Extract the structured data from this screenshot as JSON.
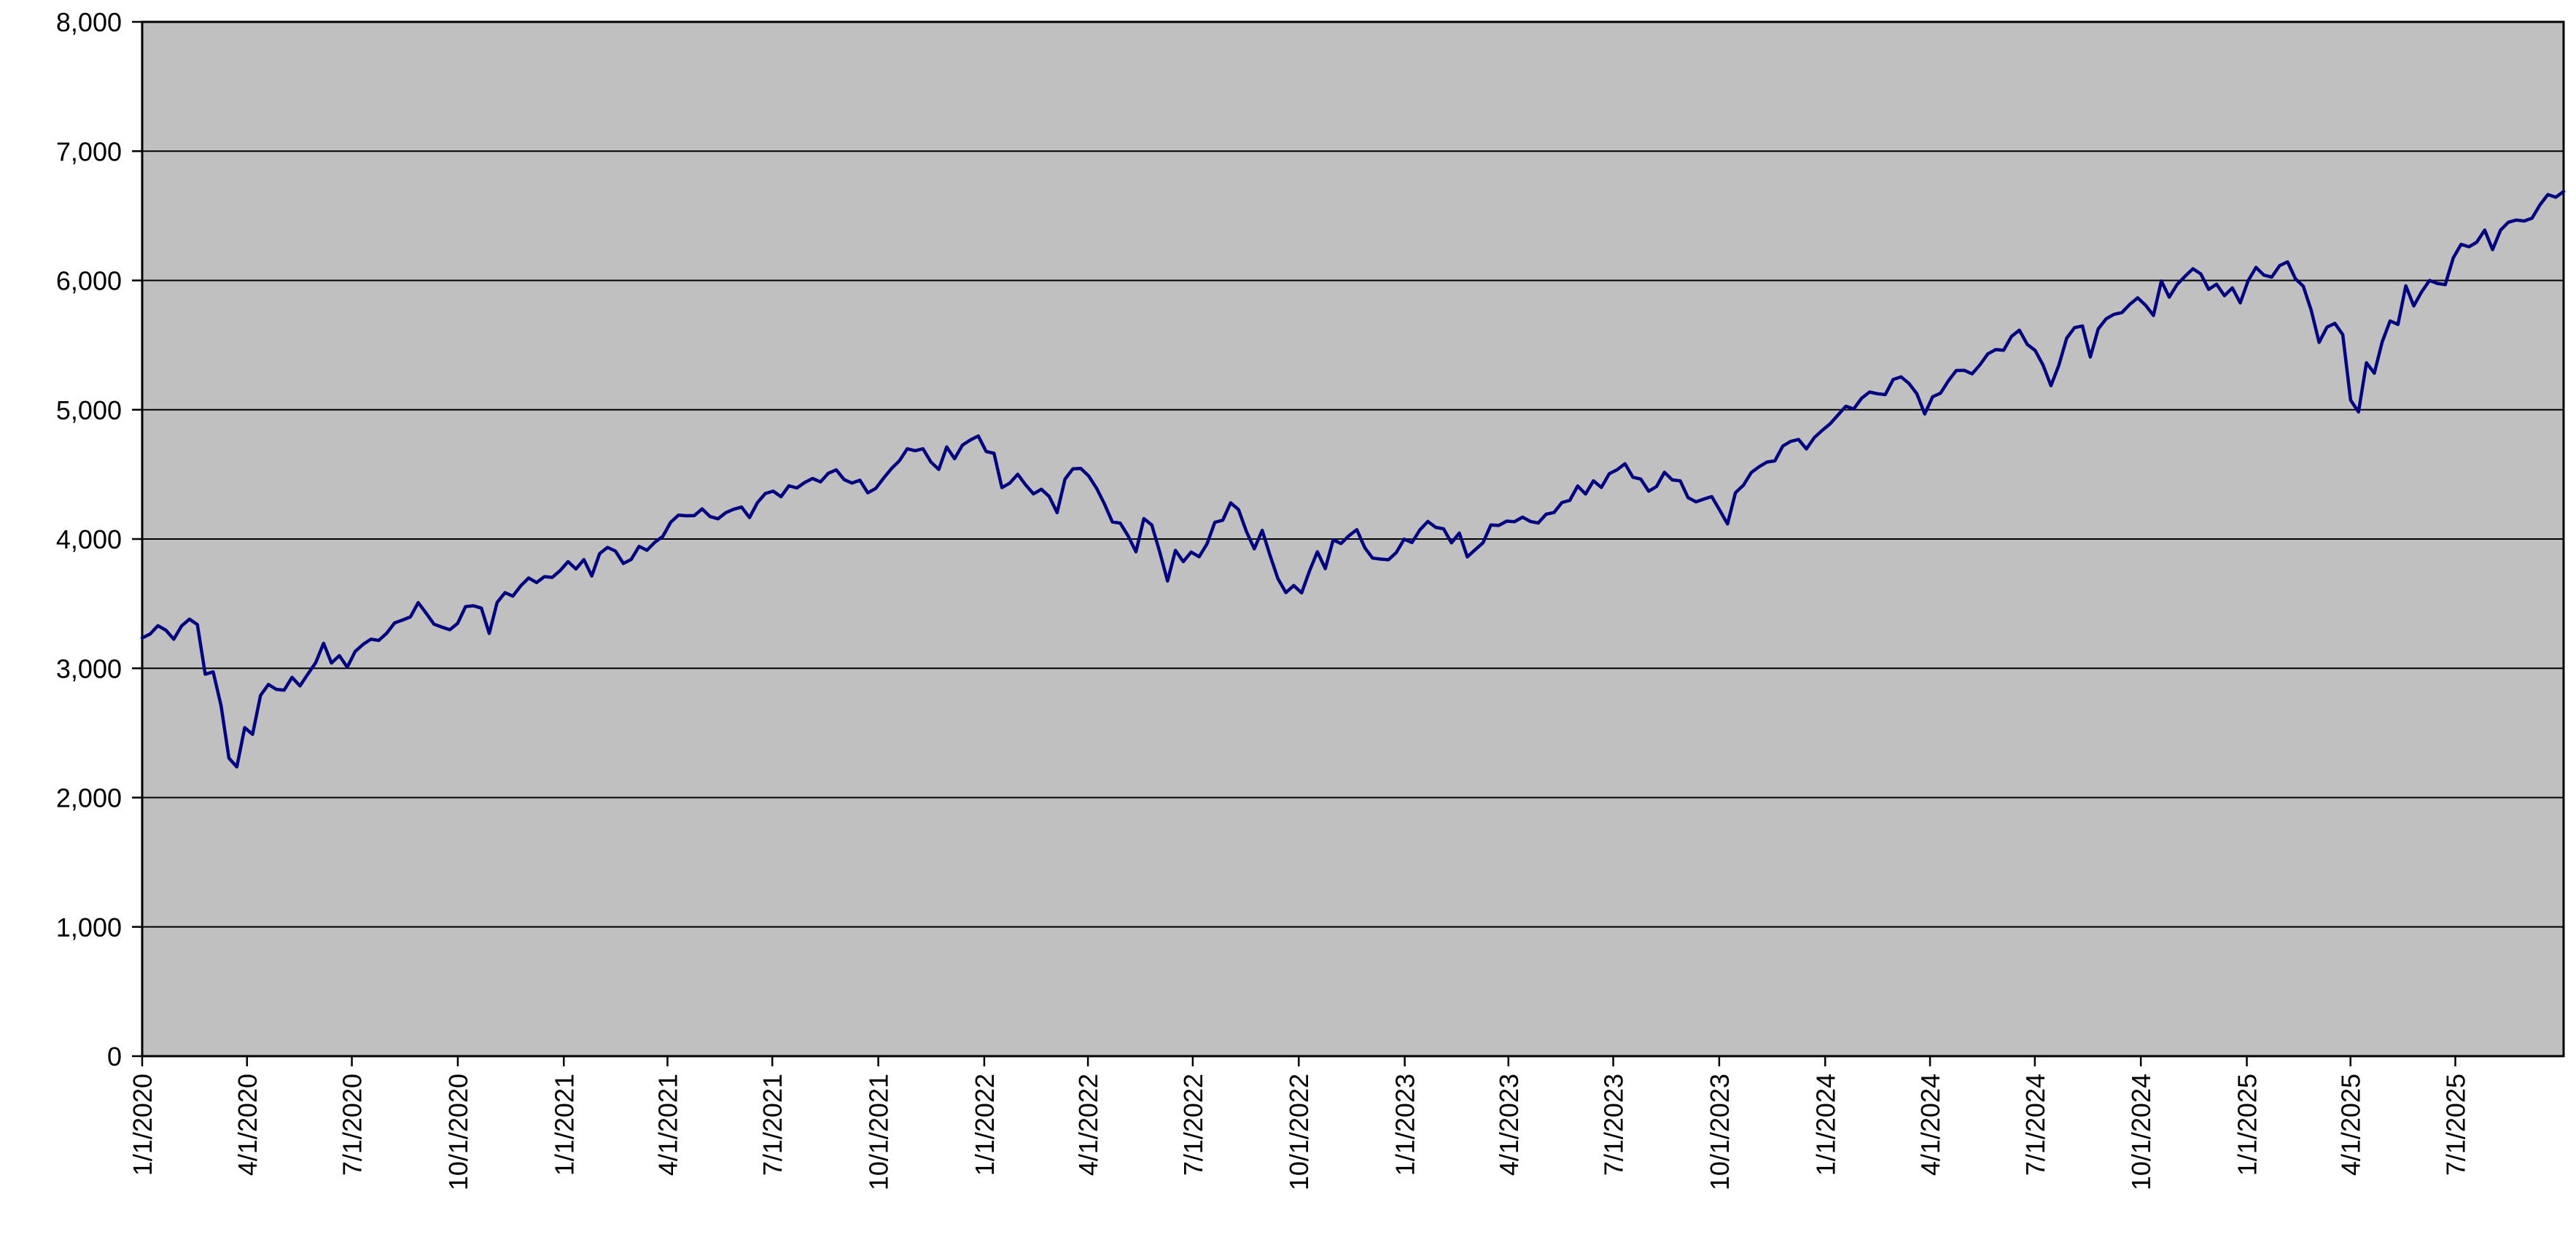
{
  "chart_data": {
    "type": "line",
    "title": "",
    "legend": "none",
    "grid": "horizontal",
    "plot_background": "#c0c0c0",
    "line_color": "#000080",
    "axis_color": "#000000",
    "y_min": 0,
    "y_max": 8000,
    "y_tick_step": 1000,
    "y_tick_labels": [
      "0",
      "1,000",
      "2,000",
      "3,000",
      "4,000",
      "5,000",
      "6,000",
      "7,000",
      "8,000"
    ],
    "x_start": "1/1/2020",
    "x_end": "10/3/2025",
    "x_tick_labels": [
      "1/1/2020",
      "4/1/2020",
      "7/1/2020",
      "10/1/2020",
      "1/1/2021",
      "4/1/2021",
      "7/1/2021",
      "10/1/2021",
      "1/1/2022",
      "4/1/2022",
      "7/1/2022",
      "10/1/2022",
      "1/1/2023",
      "4/1/2023",
      "7/1/2023",
      "10/1/2023",
      "1/1/2024",
      "4/1/2024",
      "7/1/2024",
      "10/1/2024",
      "1/1/2025",
      "4/1/2025",
      "7/1/2025"
    ],
    "values": [
      3235,
      3265,
      3330,
      3295,
      3225,
      3328,
      3380,
      3338,
      2954,
      2972,
      2711,
      2305,
      2237,
      2541,
      2489,
      2790,
      2875,
      2837,
      2831,
      2930,
      2864,
      2955,
      3044,
      3194,
      3041,
      3098,
      3009,
      3130,
      3185,
      3225,
      3216,
      3271,
      3351,
      3373,
      3397,
      3508,
      3427,
      3341,
      3319,
      3298,
      3348,
      3477,
      3484,
      3465,
      3270,
      3509,
      3585,
      3558,
      3638,
      3699,
      3663,
      3709,
      3703,
      3756,
      3825,
      3768,
      3841,
      3714,
      3887,
      3935,
      3907,
      3811,
      3842,
      3943,
      3913,
      3975,
      4020,
      4129,
      4185,
      4180,
      4181,
      4233,
      4174,
      4156,
      4204,
      4230,
      4247,
      4166,
      4281,
      4352,
      4370,
      4327,
      4412,
      4395,
      4437,
      4468,
      4442,
      4509,
      4535,
      4459,
      4433,
      4455,
      4357,
      4391,
      4471,
      4545,
      4605,
      4698,
      4683,
      4698,
      4595,
      4538,
      4712,
      4621,
      4726,
      4766,
      4797,
      4677,
      4663,
      4398,
      4432,
      4501,
      4419,
      4349,
      4385,
      4329,
      4204,
      4463,
      4543,
      4546,
      4488,
      4393,
      4272,
      4132,
      4123,
      4024,
      3901,
      4158,
      4109,
      3901,
      3675,
      3912,
      3825,
      3899,
      3863,
      3962,
      4130,
      4145,
      4280,
      4228,
      4058,
      3924,
      4067,
      3873,
      3693,
      3586,
      3640,
      3583,
      3753,
      3901,
      3771,
      3993,
      3965,
      4026,
      4072,
      3934,
      3852,
      3845,
      3840,
      3895,
      3999,
      3973,
      4071,
      4136,
      4090,
      4079,
      3970,
      4046,
      3862,
      3917,
      3971,
      4109,
      4105,
      4138,
      4134,
      4169,
      4136,
      4124,
      4192,
      4205,
      4282,
      4299,
      4410,
      4348,
      4450,
      4399,
      4505,
      4536,
      4582,
      4478,
      4464,
      4370,
      4406,
      4516,
      4457,
      4450,
      4320,
      4288,
      4309,
      4328,
      4224,
      4117,
      4358,
      4415,
      4514,
      4559,
      4595,
      4604,
      4719,
      4755,
      4770,
      4697,
      4784,
      4840,
      4891,
      4959,
      5027,
      5006,
      5089,
      5137,
      5124,
      5117,
      5234,
      5254,
      5204,
      5123,
      4967,
      5100,
      5128,
      5223,
      5303,
      5305,
      5278,
      5347,
      5432,
      5465,
      5460,
      5567,
      5615,
      5505,
      5459,
      5346,
      5186,
      5344,
      5554,
      5635,
      5648,
      5408,
      5626,
      5703,
      5738,
      5751,
      5815,
      5865,
      5808,
      5729,
      5996,
      5871,
      5969,
      6032,
      6090,
      6051,
      5931,
      5971,
      5882,
      5942,
      5827,
      5997,
      6101,
      6041,
      6026,
      6115,
      6144,
      6013,
      5955,
      5770,
      5521,
      5639,
      5668,
      5581,
      5074,
      4983,
      5363,
      5283,
      5525,
      5687,
      5660,
      5958,
      5803,
      5912,
      6000,
      5977,
      5968,
      6173,
      6279,
      6260,
      6297,
      6389,
      6238,
      6389,
      6450,
      6467,
      6460,
      6482,
      6584,
      6664,
      6644,
      6688
    ]
  }
}
